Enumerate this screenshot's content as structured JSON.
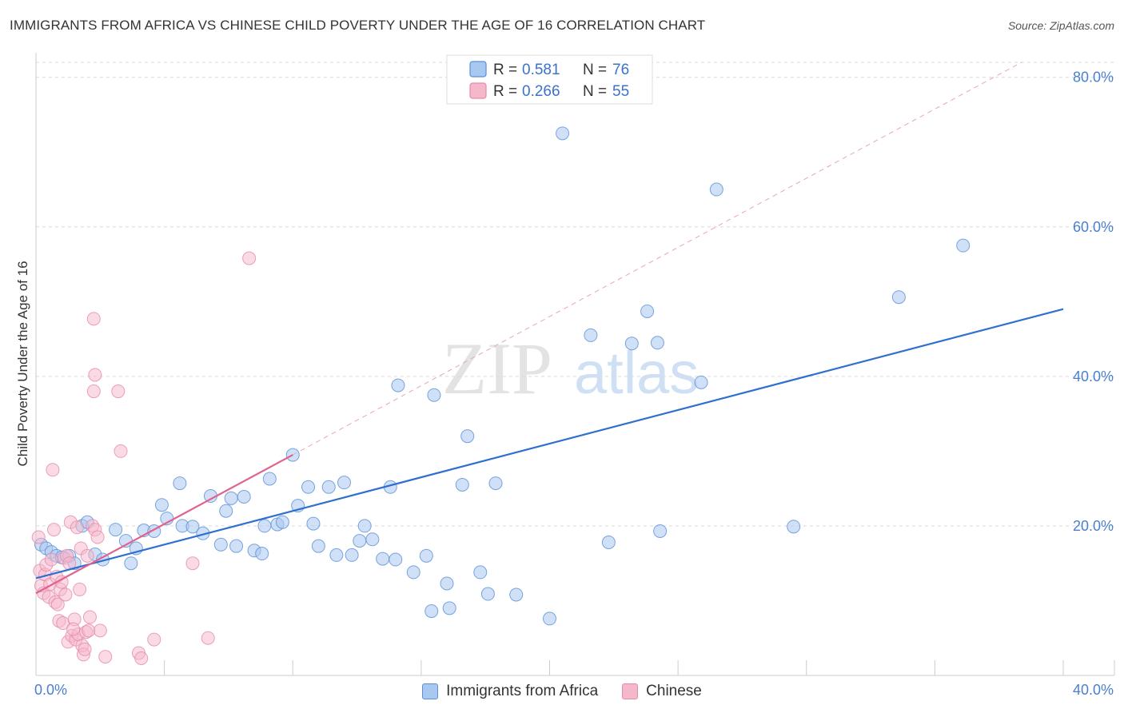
{
  "header": {
    "title": "IMMIGRANTS FROM AFRICA VS CHINESE CHILD POVERTY UNDER THE AGE OF 16 CORRELATION CHART",
    "source": "Source: ZipAtlas.com"
  },
  "watermark": {
    "zip": "ZIP",
    "atlas": "atlas"
  },
  "colors": {
    "africa_fill": "#a9c8f0",
    "africa_stroke": "#5b8fd6",
    "africa_line": "#2f6fcf",
    "chinese_fill": "#f5b8cb",
    "chinese_stroke": "#e68aa7",
    "chinese_line": "#e0628d",
    "tick_text": "#4a7fd0",
    "grid": "#d9d9d9"
  },
  "legend": {
    "rows": [
      {
        "r_label": "R =",
        "r_value": "0.581",
        "n_label": "N =",
        "n_value": "76"
      },
      {
        "r_label": "R =",
        "r_value": "0.266",
        "n_label": "N =",
        "n_value": "55"
      }
    ]
  },
  "bottom_legend": {
    "africa": "Immigrants from Africa",
    "chinese": "Chinese"
  },
  "chart_data": {
    "type": "scatter",
    "title": "IMMIGRANTS FROM AFRICA VS CHINESE CHILD POVERTY UNDER THE AGE OF 16 CORRELATION CHART",
    "xlabel": "",
    "ylabel": "Child Poverty Under the Age of 16",
    "xlim": [
      0,
      40
    ],
    "ylim": [
      0,
      82
    ],
    "x_tick_labels": [
      "0.0%",
      "40.0%"
    ],
    "y_ticks": [
      20,
      40,
      60,
      80
    ],
    "y_tick_labels": [
      "20.0%",
      "40.0%",
      "60.0%",
      "80.0%"
    ],
    "grid": true,
    "series": [
      {
        "name": "Immigrants from Africa",
        "r": 0.581,
        "n": 76,
        "trend": {
          "x0": 0,
          "y0": 13.0,
          "x1": 40,
          "y1": 49.0
        },
        "points": [
          [
            0.2,
            17.5
          ],
          [
            0.4,
            17
          ],
          [
            0.6,
            16.5
          ],
          [
            0.8,
            16
          ],
          [
            1.0,
            15.8
          ],
          [
            1.3,
            16
          ],
          [
            1.5,
            15
          ],
          [
            1.8,
            20
          ],
          [
            2.0,
            20.5
          ],
          [
            2.3,
            16.2
          ],
          [
            2.6,
            15.5
          ],
          [
            3.1,
            19.5
          ],
          [
            3.5,
            18
          ],
          [
            3.7,
            15
          ],
          [
            3.9,
            17
          ],
          [
            4.2,
            19.4
          ],
          [
            4.6,
            19.3
          ],
          [
            4.9,
            22.8
          ],
          [
            5.1,
            21
          ],
          [
            5.7,
            20
          ],
          [
            6.1,
            19.9
          ],
          [
            6.5,
            19
          ],
          [
            5.6,
            25.7
          ],
          [
            6.8,
            24
          ],
          [
            7.2,
            17.5
          ],
          [
            7.4,
            22
          ],
          [
            7.6,
            23.7
          ],
          [
            7.8,
            17.3
          ],
          [
            8.1,
            23.9
          ],
          [
            8.5,
            16.7
          ],
          [
            8.8,
            16.3
          ],
          [
            8.9,
            20
          ],
          [
            9.1,
            26.3
          ],
          [
            9.4,
            20.2
          ],
          [
            9.6,
            20.5
          ],
          [
            10.0,
            29.5
          ],
          [
            10.2,
            22.7
          ],
          [
            10.6,
            25.2
          ],
          [
            10.8,
            20.3
          ],
          [
            11.0,
            17.3
          ],
          [
            11.4,
            25.2
          ],
          [
            11.7,
            16.1
          ],
          [
            12.0,
            25.8
          ],
          [
            12.3,
            16.1
          ],
          [
            12.6,
            18
          ],
          [
            12.8,
            20
          ],
          [
            13.1,
            18.2
          ],
          [
            13.5,
            15.6
          ],
          [
            13.8,
            25.2
          ],
          [
            14.0,
            15.5
          ],
          [
            14.1,
            38.8
          ],
          [
            14.7,
            13.8
          ],
          [
            15.2,
            16
          ],
          [
            15.4,
            8.6
          ],
          [
            15.5,
            37.5
          ],
          [
            16.0,
            12.3
          ],
          [
            16.1,
            9
          ],
          [
            16.6,
            25.5
          ],
          [
            16.8,
            32
          ],
          [
            17.3,
            13.8
          ],
          [
            17.6,
            10.9
          ],
          [
            17.9,
            25.7
          ],
          [
            18.7,
            10.8
          ],
          [
            20.0,
            7.6
          ],
          [
            20.5,
            72.5
          ],
          [
            21.6,
            45.5
          ],
          [
            22.3,
            17.8
          ],
          [
            23.2,
            44.4
          ],
          [
            23.8,
            48.7
          ],
          [
            24.2,
            44.5
          ],
          [
            24.3,
            19.3
          ],
          [
            25.9,
            39.2
          ],
          [
            26.5,
            65
          ],
          [
            29.5,
            19.9
          ],
          [
            33.6,
            50.6
          ],
          [
            36.1,
            57.5
          ]
        ]
      },
      {
        "name": "Chinese",
        "r": 0.266,
        "n": 55,
        "trend": {
          "x0": 0,
          "y0": 11.0,
          "x1": 10.0,
          "y1": 29.5
        },
        "points": [
          [
            0.1,
            18.5
          ],
          [
            0.15,
            14
          ],
          [
            0.2,
            12
          ],
          [
            0.3,
            11
          ],
          [
            0.35,
            13.5
          ],
          [
            0.4,
            14.8
          ],
          [
            0.5,
            10.5
          ],
          [
            0.55,
            12.2
          ],
          [
            0.6,
            15.5
          ],
          [
            0.65,
            27.5
          ],
          [
            0.7,
            19.5
          ],
          [
            0.75,
            9.8
          ],
          [
            0.8,
            13.2
          ],
          [
            0.9,
            7.3
          ],
          [
            0.95,
            11.5
          ],
          [
            1.0,
            12.5
          ],
          [
            1.05,
            7
          ],
          [
            1.1,
            15.7
          ],
          [
            1.15,
            10.8
          ],
          [
            1.2,
            16
          ],
          [
            1.25,
            4.5
          ],
          [
            1.3,
            15
          ],
          [
            1.35,
            20.5
          ],
          [
            1.4,
            5.3
          ],
          [
            1.5,
            7.5
          ],
          [
            1.55,
            4.8
          ],
          [
            1.6,
            19.8
          ],
          [
            1.65,
            5.5
          ],
          [
            1.7,
            11.5
          ],
          [
            1.75,
            17
          ],
          [
            1.8,
            4
          ],
          [
            1.85,
            2.8
          ],
          [
            1.9,
            3.5
          ],
          [
            1.95,
            5.8
          ],
          [
            2.0,
            16
          ],
          [
            2.05,
            6
          ],
          [
            2.1,
            7.8
          ],
          [
            2.2,
            20
          ],
          [
            2.25,
            38
          ],
          [
            2.3,
            19.5
          ],
          [
            2.5,
            6
          ],
          [
            2.25,
            47.7
          ],
          [
            2.3,
            40.2
          ],
          [
            2.4,
            18.5
          ],
          [
            2.7,
            2.5
          ],
          [
            3.2,
            38
          ],
          [
            3.3,
            30
          ],
          [
            4.0,
            3
          ],
          [
            4.1,
            2.3
          ],
          [
            4.6,
            4.8
          ],
          [
            6.1,
            15
          ],
          [
            6.7,
            5
          ],
          [
            8.3,
            55.8
          ],
          [
            1.45,
            6.2
          ],
          [
            0.85,
            9.5
          ]
        ]
      }
    ]
  }
}
